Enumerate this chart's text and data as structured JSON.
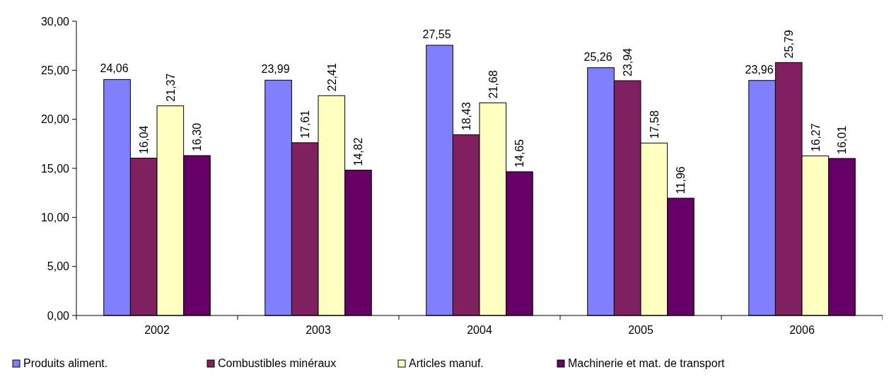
{
  "chart_data": {
    "type": "bar",
    "categories": [
      "2002",
      "2003",
      "2004",
      "2005",
      "2006"
    ],
    "series": [
      {
        "name": "Produits aliment.",
        "color": "#8080ff",
        "values": [
          24.06,
          23.99,
          27.55,
          25.26,
          23.96
        ],
        "value_labels": [
          "24,06",
          "23,99",
          "27,55",
          "25,26",
          "23,96"
        ]
      },
      {
        "name": "Combustibles minéraux",
        "color": "#802060",
        "values": [
          16.04,
          17.61,
          18.43,
          23.94,
          25.79
        ],
        "value_labels": [
          "16,04",
          "17,61",
          "18,43",
          "23,94",
          "25,79"
        ]
      },
      {
        "name": "Articles manuf.",
        "color": "#ffffc0",
        "values": [
          21.37,
          22.41,
          21.68,
          17.58,
          16.27
        ],
        "value_labels": [
          "21,37",
          "22,41",
          "21,68",
          "17,58",
          "16,27"
        ]
      },
      {
        "name": "Machinerie et mat. de transport",
        "color": "#660066",
        "values": [
          16.3,
          14.82,
          14.65,
          11.96,
          16.01
        ],
        "value_labels": [
          "16,30",
          "14,82",
          "14,65",
          "11,96",
          "16,01"
        ]
      }
    ],
    "ylim": [
      0,
      30
    ],
    "yticks": [
      {
        "value": 0,
        "label": "0,00"
      },
      {
        "value": 5,
        "label": "5,00"
      },
      {
        "value": 10,
        "label": "10,00"
      },
      {
        "value": 15,
        "label": "15,00"
      },
      {
        "value": 20,
        "label": "20,00"
      },
      {
        "value": 25,
        "label": "25,00"
      },
      {
        "value": 30,
        "label": "30,00"
      }
    ],
    "grid": false,
    "legend": "bottom"
  }
}
